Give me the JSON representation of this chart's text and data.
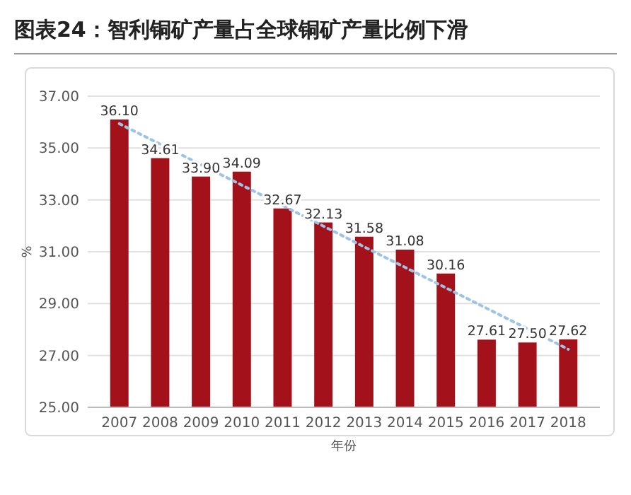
{
  "chart_data": {
    "type": "bar",
    "title": "图表24：智利铜矿产量占全球铜矿产量比例下滑",
    "xlabel": "年份",
    "ylabel": "%",
    "categories": [
      "2007",
      "2008",
      "2009",
      "2010",
      "2011",
      "2012",
      "2013",
      "2014",
      "2015",
      "2016",
      "2017",
      "2018"
    ],
    "series": [
      {
        "color": "#a3111b",
        "values": [
          36.1,
          34.61,
          33.9,
          34.09,
          32.67,
          32.13,
          31.58,
          31.08,
          30.16,
          27.61,
          27.5,
          27.62
        ],
        "value_labels": [
          "36.10",
          "34.61",
          "33.90",
          "34.09",
          "32.67",
          "32.13",
          "31.58",
          "31.08",
          "30.16",
          "27.61",
          "27.50",
          "27.62"
        ]
      },
      {
        "type": "line",
        "color": "#9dc3e6",
        "line_style": "dotted",
        "values": [
          35.94,
          35.15,
          34.36,
          33.57,
          32.78,
          31.99,
          31.19,
          30.4,
          29.61,
          28.82,
          28.03,
          27.24
        ]
      }
    ],
    "ylim": [
      25,
      37
    ],
    "yticks": [
      {
        "value": 25,
        "label": "25.00"
      },
      {
        "value": 27,
        "label": "27.00"
      },
      {
        "value": 29,
        "label": "29.00"
      },
      {
        "value": 31,
        "label": "31.00"
      },
      {
        "value": 33,
        "label": "33.00"
      },
      {
        "value": 35,
        "label": "35.00"
      },
      {
        "value": 37,
        "label": "37.00"
      }
    ],
    "grid": "y"
  }
}
